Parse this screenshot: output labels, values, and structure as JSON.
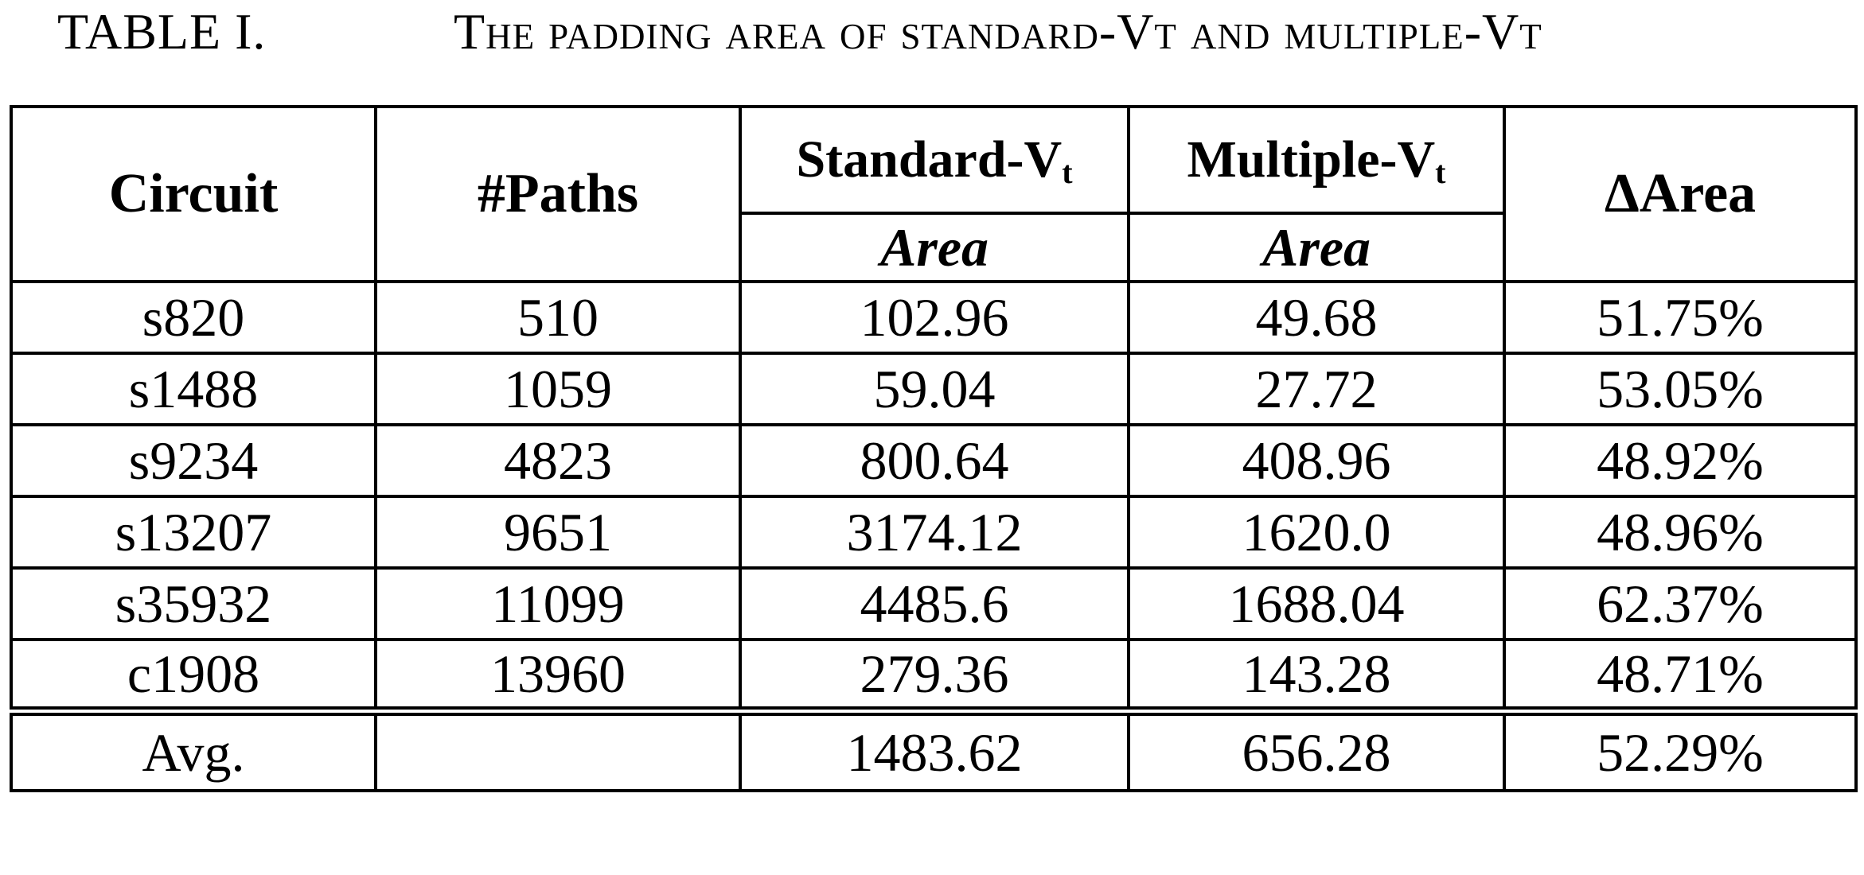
{
  "caption": {
    "label": "TABLE I.",
    "title": "The padding area of standard-Vt and multiple-Vt"
  },
  "table": {
    "headers": {
      "circuit": "Circuit",
      "paths": "#Paths",
      "standard_prefix": "Standard-V",
      "standard_sub": "t",
      "multiple_prefix": "Multiple-V",
      "multiple_sub": "t",
      "delta": "ΔArea",
      "area1": "Area",
      "area2": "Area"
    },
    "rows": [
      {
        "circuit": "s820",
        "paths": "510",
        "standard": "102.96",
        "multiple": "49.68",
        "delta": "51.75%"
      },
      {
        "circuit": "s1488",
        "paths": "1059",
        "standard": "59.04",
        "multiple": "27.72",
        "delta": "53.05%"
      },
      {
        "circuit": "s9234",
        "paths": "4823",
        "standard": "800.64",
        "multiple": "408.96",
        "delta": "48.92%"
      },
      {
        "circuit": "s13207",
        "paths": "9651",
        "standard": "3174.12",
        "multiple": "1620.0",
        "delta": "48.96%"
      },
      {
        "circuit": "s35932",
        "paths": "11099",
        "standard": "4485.6",
        "multiple": "1688.04",
        "delta": "62.37%"
      },
      {
        "circuit": "c1908",
        "paths": "13960",
        "standard": "279.36",
        "multiple": "143.28",
        "delta": "48.71%"
      }
    ],
    "average": {
      "circuit": "Avg.",
      "paths": "",
      "standard": "1483.62",
      "multiple": "656.28",
      "delta": "52.29%"
    }
  }
}
